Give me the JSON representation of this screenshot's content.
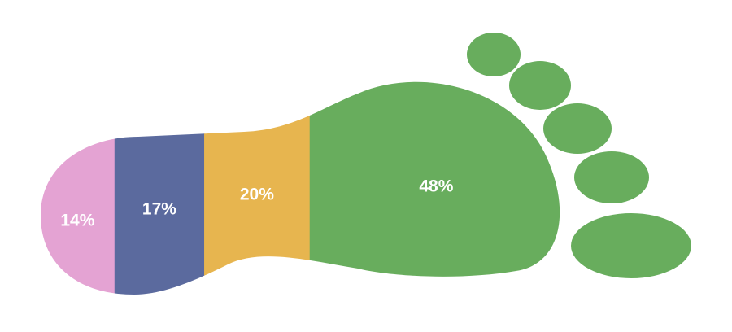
{
  "chart_data": {
    "type": "footprint",
    "categories": [
      null,
      null,
      null,
      null
    ],
    "values": [
      14,
      17,
      20,
      48
    ],
    "value_labels": [
      "14%",
      "17%",
      "20%",
      "48%"
    ],
    "colors": [
      "#e4a3d3",
      "#5b6a9e",
      "#e7b54f",
      "#68ad5d"
    ]
  }
}
